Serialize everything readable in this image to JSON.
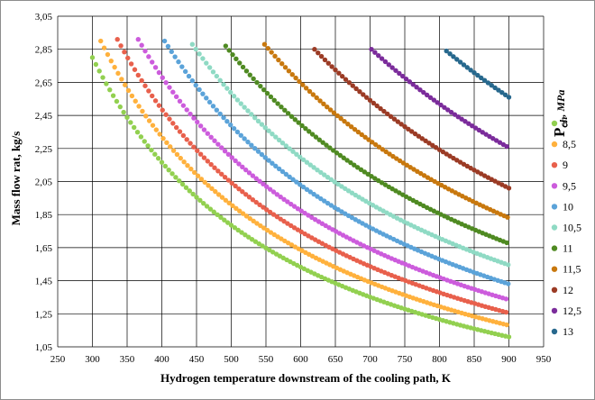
{
  "chart_data": {
    "type": "scatter",
    "title": "",
    "xlabel": "Hydrogen temperature downstream of the cooling path, K",
    "ylabel": "Mass flow rat, kg/s",
    "xlim": [
      250,
      950
    ],
    "ylim": [
      1.05,
      3.05
    ],
    "x_ticks": [
      250,
      300,
      350,
      400,
      450,
      500,
      550,
      600,
      650,
      700,
      750,
      800,
      850,
      900,
      950
    ],
    "y_ticks": [
      1.05,
      1.25,
      1.45,
      1.65,
      1.85,
      2.05,
      2.25,
      2.45,
      2.65,
      2.85,
      3.05
    ],
    "x_tick_labels": [
      "250",
      "300",
      "350",
      "400",
      "450",
      "500",
      "550",
      "600",
      "650",
      "700",
      "750",
      "800",
      "850",
      "900",
      "950"
    ],
    "y_tick_labels": [
      "1,05",
      "1,25",
      "1,45",
      "1,65",
      "1,85",
      "2,05",
      "2,25",
      "2,45",
      "2,65",
      "2,85",
      "3,05"
    ],
    "grid": true,
    "legend": {
      "title_main": "P",
      "title_sub": "ch",
      "title_unit": ", MPa",
      "placement": "right"
    },
    "series": [
      {
        "name": "8",
        "color": "#92d050",
        "x_start": 300,
        "x_end": 900,
        "y_start": 2.8,
        "y_end": 1.11
      },
      {
        "name": "8,5",
        "color": "#ffb13d",
        "x_start": 312,
        "x_end": 900,
        "y_start": 2.9,
        "y_end": 1.18
      },
      {
        "name": "9",
        "color": "#e8604c",
        "x_start": 336,
        "x_end": 900,
        "y_start": 2.91,
        "y_end": 1.255
      },
      {
        "name": "9,5",
        "color": "#cc5cdc",
        "x_start": 366,
        "x_end": 900,
        "y_start": 2.91,
        "y_end": 1.335
      },
      {
        "name": "10",
        "color": "#5ba3d9",
        "x_start": 404,
        "x_end": 900,
        "y_start": 2.9,
        "y_end": 1.43
      },
      {
        "name": "10,5",
        "color": "#8fdac4",
        "x_start": 444,
        "x_end": 900,
        "y_start": 2.88,
        "y_end": 1.545
      },
      {
        "name": "11",
        "color": "#4f8a22",
        "x_start": 492,
        "x_end": 900,
        "y_start": 2.87,
        "y_end": 1.675
      },
      {
        "name": "11,5",
        "color": "#c8780e",
        "x_start": 548,
        "x_end": 900,
        "y_start": 2.88,
        "y_end": 1.83
      },
      {
        "name": "12",
        "color": "#9b3b25",
        "x_start": 620,
        "x_end": 900,
        "y_start": 2.85,
        "y_end": 2.01
      },
      {
        "name": "12,5",
        "color": "#7b2c9b",
        "x_start": 702,
        "x_end": 900,
        "y_start": 2.85,
        "y_end": 2.255
      },
      {
        "name": "13",
        "color": "#27688d",
        "x_start": 810,
        "x_end": 900,
        "y_start": 2.84,
        "y_end": 2.56
      }
    ]
  }
}
